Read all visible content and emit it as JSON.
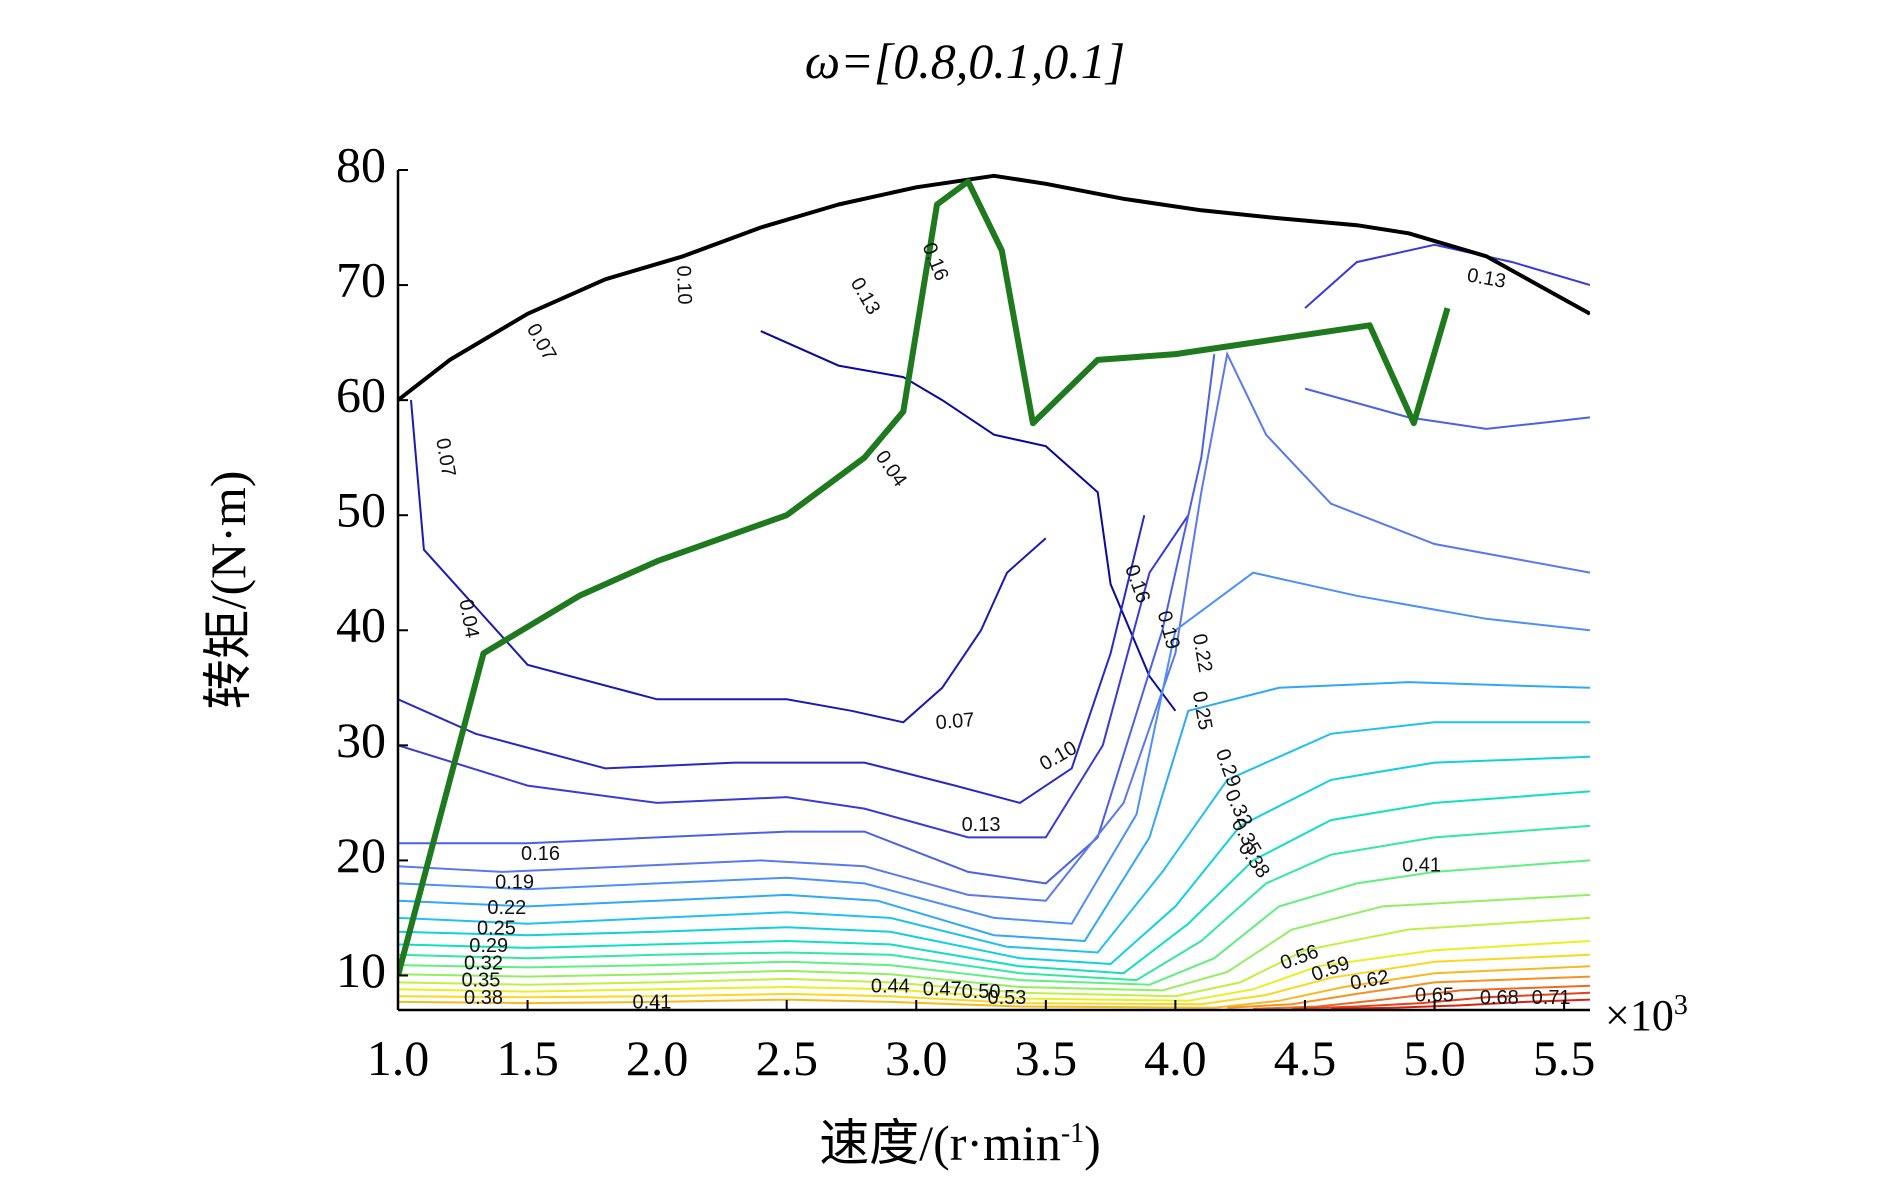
{
  "chart_data": {
    "type": "contour",
    "title": "ω=[0.8,0.1,0.1]",
    "xlabel": "速度/(r·min",
    "xlabel_sup": "-1",
    "xlabel_end": ")",
    "ylabel": "转矩/(N·m)",
    "x_multiplier": "×10",
    "x_multiplier_sup": "3",
    "xlim": [
      1.0,
      5.6
    ],
    "ylim": [
      7,
      80
    ],
    "x_ticks": [
      1.0,
      1.5,
      2.0,
      2.5,
      3.0,
      3.5,
      4.0,
      4.5,
      5.0,
      5.5
    ],
    "x_tick_labels": [
      "1.0",
      "1.5",
      "2.0",
      "2.5",
      "3.0",
      "3.5",
      "4.0",
      "4.5",
      "5.0",
      "5.5"
    ],
    "y_ticks": [
      10,
      20,
      30,
      40,
      50,
      60,
      70,
      80
    ],
    "y_tick_labels": [
      "10",
      "20",
      "30",
      "40",
      "50",
      "60",
      "70",
      "80"
    ],
    "max_torque_curve": {
      "color": "#000000",
      "x": [
        1.0,
        1.2,
        1.5,
        1.8,
        2.1,
        2.4,
        2.7,
        3.0,
        3.3,
        3.5,
        3.8,
        4.1,
        4.4,
        4.7,
        4.9,
        5.2,
        5.4,
        5.6
      ],
      "y": [
        60,
        63.5,
        67.5,
        70.5,
        72.5,
        75,
        77,
        78.5,
        79.5,
        78.8,
        77.5,
        76.5,
        75.8,
        75.2,
        74.5,
        72.5,
        70,
        67.5
      ]
    },
    "operating_path": {
      "color": "#1f7a1f",
      "x": [
        1.0,
        1.33,
        1.7,
        2.0,
        2.5,
        2.8,
        2.95,
        3.08,
        3.2,
        3.33,
        3.45,
        3.7,
        4.0,
        4.3,
        4.75,
        4.92,
        5.05
      ],
      "y": [
        10,
        38,
        43,
        46,
        50,
        55,
        59,
        77,
        79,
        73,
        58,
        63.5,
        64,
        65,
        66.5,
        58,
        68
      ]
    },
    "contours": [
      {
        "level": 0.04,
        "color": "#0a0aa0",
        "x": [
          2.4,
          2.7,
          2.95,
          3.1,
          3.3,
          3.5,
          3.7,
          3.75,
          3.9,
          4.0
        ],
        "y": [
          66,
          63,
          62,
          60,
          57,
          56,
          52,
          44,
          36,
          33
        ]
      },
      {
        "level": 0.07,
        "color": "#1a1ab4",
        "x": [
          1.05,
          1.1,
          1.5,
          2.0,
          2.5,
          2.75,
          2.95,
          3.1,
          3.25,
          3.35,
          3.5
        ],
        "y": [
          60,
          47,
          37,
          34,
          34,
          33,
          32,
          35,
          40,
          45,
          48
        ]
      },
      {
        "level": 0.1,
        "color": "#2828c8",
        "x": [
          1.0,
          1.3,
          1.8,
          2.3,
          2.8,
          3.15,
          3.4,
          3.6,
          3.75,
          3.88
        ],
        "y": [
          34,
          31,
          28,
          28.5,
          28.5,
          26.5,
          25,
          28,
          38,
          50
        ]
      },
      {
        "level": 0.13,
        "color": "#3a3ad8",
        "x": [
          1.0,
          1.5,
          2.0,
          2.5,
          2.8,
          3.2,
          3.5,
          3.72,
          3.9,
          4.05
        ],
        "y": [
          30,
          26.5,
          25,
          25.5,
          24.5,
          22,
          22,
          30,
          45,
          50
        ]
      },
      {
        "level": 0.13,
        "color": "#3a3ad8",
        "x": [
          4.5,
          4.7,
          5.0,
          5.3,
          5.6
        ],
        "y": [
          68,
          72,
          73.5,
          72,
          70
        ]
      },
      {
        "level": 0.16,
        "color": "#4a60e8",
        "x": [
          1.0,
          1.5,
          2.0,
          2.5,
          2.8,
          3.2,
          3.5,
          3.7,
          3.95,
          4.1,
          4.15
        ],
        "y": [
          21.5,
          21.5,
          22,
          22.5,
          22.5,
          19,
          18,
          22,
          40,
          55,
          64
        ]
      },
      {
        "level": 0.16,
        "color": "#4a60e8",
        "x": [
          4.5,
          4.9,
          5.2,
          5.4,
          5.6
        ],
        "y": [
          61,
          58.5,
          57.5,
          58,
          58.5
        ]
      },
      {
        "level": 0.19,
        "color": "#5a78f0",
        "x": [
          1.0,
          1.4,
          1.9,
          2.4,
          2.8,
          3.2,
          3.5,
          3.8,
          4.0,
          4.1,
          4.2,
          4.35,
          4.6,
          5.0,
          5.6
        ],
        "y": [
          19.5,
          19,
          19.5,
          20,
          19.5,
          17,
          16.5,
          25,
          38,
          52,
          64,
          57,
          51,
          47.5,
          45
        ]
      },
      {
        "level": 0.22,
        "color": "#4a90f8",
        "x": [
          1.0,
          1.5,
          2.0,
          2.5,
          2.8,
          3.3,
          3.6,
          3.85,
          4.0,
          4.3,
          4.7,
          5.2,
          5.6
        ],
        "y": [
          18,
          17.5,
          18,
          18.5,
          18,
          15,
          14.5,
          24,
          40,
          45,
          43,
          41,
          40
        ]
      },
      {
        "level": 0.25,
        "color": "#30a8f8",
        "x": [
          1.0,
          1.5,
          2.0,
          2.5,
          2.85,
          3.3,
          3.65,
          3.9,
          4.05,
          4.4,
          4.9,
          5.3,
          5.6
        ],
        "y": [
          16.5,
          16,
          16.5,
          17,
          16.5,
          13.5,
          13,
          22,
          33,
          35,
          35.5,
          35.2,
          35
        ]
      },
      {
        "level": 0.29,
        "color": "#20c0f0",
        "x": [
          1.0,
          1.5,
          2.0,
          2.5,
          2.9,
          3.35,
          3.7,
          3.95,
          4.2,
          4.6,
          5.0,
          5.6
        ],
        "y": [
          15,
          14.5,
          15,
          15.5,
          15,
          12.5,
          12,
          19,
          27,
          31,
          32,
          32
        ]
      },
      {
        "level": 0.32,
        "color": "#10d0e0",
        "x": [
          1.0,
          1.5,
          2.0,
          2.5,
          2.9,
          3.4,
          3.75,
          4.0,
          4.25,
          4.6,
          5.0,
          5.6
        ],
        "y": [
          13.8,
          13.5,
          13.8,
          14.2,
          13.8,
          11.5,
          11,
          16,
          23,
          27,
          28.5,
          29
        ]
      },
      {
        "level": 0.35,
        "color": "#10e0c0",
        "x": [
          1.0,
          1.5,
          2.0,
          2.5,
          2.9,
          3.4,
          3.8,
          4.05,
          4.3,
          4.6,
          5.0,
          5.6
        ],
        "y": [
          12.7,
          12.4,
          12.7,
          13,
          12.7,
          10.8,
          10.2,
          14.5,
          20,
          23.5,
          25,
          26
        ]
      },
      {
        "level": 0.38,
        "color": "#30e8a0",
        "x": [
          1.0,
          1.5,
          2.0,
          2.5,
          2.9,
          3.4,
          3.85,
          4.1,
          4.35,
          4.6,
          5.0,
          5.6
        ],
        "y": [
          11.8,
          11.5,
          11.8,
          12,
          11.8,
          10.2,
          9.6,
          13,
          18,
          20.5,
          22,
          23
        ]
      },
      {
        "level": 0.41,
        "color": "#60f080",
        "x": [
          1.0,
          1.5,
          2.0,
          2.5,
          2.9,
          3.4,
          3.9,
          4.15,
          4.4,
          4.7,
          5.0,
          5.6
        ],
        "y": [
          10.9,
          10.7,
          10.9,
          11.2,
          10.9,
          9.6,
          9.2,
          11.5,
          16,
          18,
          19,
          20
        ]
      },
      {
        "level": 0.44,
        "color": "#90f060",
        "x": [
          1.0,
          1.5,
          2.0,
          2.5,
          2.9,
          3.4,
          3.95,
          4.2,
          4.45,
          4.8,
          5.6
        ],
        "y": [
          10.1,
          9.9,
          10.1,
          10.4,
          10.1,
          9.0,
          8.7,
          10.3,
          14,
          16,
          17
        ]
      },
      {
        "level": 0.47,
        "color": "#c0f040",
        "x": [
          1.0,
          1.5,
          2.0,
          2.5,
          2.9,
          3.4,
          4.0,
          4.25,
          4.5,
          4.9,
          5.6
        ],
        "y": [
          9.4,
          9.2,
          9.4,
          9.7,
          9.4,
          8.5,
          8.2,
          9.4,
          12.2,
          14,
          15
        ]
      },
      {
        "level": 0.5,
        "color": "#e8f020",
        "x": [
          1.0,
          1.5,
          2.0,
          2.5,
          2.9,
          3.4,
          4.05,
          4.3,
          4.55,
          5.0,
          5.6
        ],
        "y": [
          8.8,
          8.6,
          8.8,
          9.0,
          8.8,
          8.0,
          7.8,
          8.8,
          10.8,
          12.2,
          13
        ]
      },
      {
        "level": 0.53,
        "color": "#f8d820",
        "x": [
          1.0,
          1.5,
          2.0,
          2.5,
          2.9,
          3.4,
          4.1,
          4.35,
          4.6,
          5.0,
          5.6
        ],
        "y": [
          8.2,
          8.1,
          8.2,
          8.4,
          8.2,
          7.6,
          7.5,
          8.3,
          9.8,
          11.2,
          11.8
        ]
      },
      {
        "level": 0.56,
        "color": "#f8b820",
        "x": [
          1.0,
          1.5,
          2.0,
          2.5,
          2.9,
          3.4,
          4.15,
          4.4,
          4.65,
          5.0,
          5.6
        ],
        "y": [
          7.7,
          7.6,
          7.7,
          7.9,
          7.7,
          7.3,
          7.2,
          7.8,
          9.0,
          10.2,
          10.8
        ]
      },
      {
        "level": 0.59,
        "color": "#f89020",
        "x": [
          4.2,
          4.45,
          4.7,
          5.0,
          5.6
        ],
        "y": [
          7.2,
          7.5,
          8.4,
          9.4,
          9.9
        ]
      },
      {
        "level": 0.62,
        "color": "#f06820",
        "x": [
          4.3,
          4.55,
          4.8,
          5.1,
          5.6
        ],
        "y": [
          7.1,
          7.3,
          7.9,
          8.7,
          9.1
        ]
      },
      {
        "level": 0.65,
        "color": "#e84018",
        "x": [
          4.45,
          4.7,
          4.95,
          5.2,
          5.6
        ],
        "y": [
          7.1,
          7.3,
          7.6,
          8.1,
          8.5
        ]
      },
      {
        "level": 0.68,
        "color": "#d82010",
        "x": [
          4.6,
          4.85,
          5.1,
          5.35,
          5.6
        ],
        "y": [
          7.1,
          7.2,
          7.4,
          7.7,
          7.9
        ]
      }
    ],
    "contour_labels": [
      {
        "text": "0.07",
        "x": 1.55,
        "y": 65,
        "rot": 60
      },
      {
        "text": "0.10",
        "x": 2.1,
        "y": 70,
        "rot": 88
      },
      {
        "text": "0.13",
        "x": 2.8,
        "y": 69,
        "rot": 60
      },
      {
        "text": "0.16",
        "x": 3.07,
        "y": 72,
        "rot": 68
      },
      {
        "text": "0.13",
        "x": 5.2,
        "y": 70.5,
        "rot": 10
      },
      {
        "text": "0.07",
        "x": 1.18,
        "y": 55,
        "rot": 80
      },
      {
        "text": "0.04",
        "x": 2.9,
        "y": 54,
        "rot": 55
      },
      {
        "text": "0.04",
        "x": 1.27,
        "y": 41,
        "rot": 80
      },
      {
        "text": "0.07",
        "x": 3.15,
        "y": 32,
        "rot": -5
      },
      {
        "text": "0.10",
        "x": 3.55,
        "y": 29,
        "rot": -30
      },
      {
        "text": "0.13",
        "x": 3.25,
        "y": 23,
        "rot": 0
      },
      {
        "text": "0.16",
        "x": 3.85,
        "y": 44,
        "rot": 70
      },
      {
        "text": "0.19",
        "x": 3.97,
        "y": 40,
        "rot": 75
      },
      {
        "text": "0.22",
        "x": 4.1,
        "y": 38,
        "rot": 80
      },
      {
        "text": "0.25",
        "x": 4.1,
        "y": 33,
        "rot": 80
      },
      {
        "text": "0.29",
        "x": 4.2,
        "y": 28,
        "rot": 70
      },
      {
        "text": "0.32",
        "x": 4.24,
        "y": 24.5,
        "rot": 65
      },
      {
        "text": "0.35",
        "x": 4.27,
        "y": 22,
        "rot": 60
      },
      {
        "text": "0.38",
        "x": 4.3,
        "y": 20,
        "rot": 55
      },
      {
        "text": "0.41",
        "x": 4.95,
        "y": 19.5,
        "rot": 0
      },
      {
        "text": "0.16",
        "x": 1.55,
        "y": 20.5,
        "rot": 0
      },
      {
        "text": "0.19",
        "x": 1.45,
        "y": 18,
        "rot": 0
      },
      {
        "text": "0.22",
        "x": 1.42,
        "y": 15.8,
        "rot": 0
      },
      {
        "text": "0.25",
        "x": 1.38,
        "y": 14,
        "rot": 0
      },
      {
        "text": "0.29",
        "x": 1.35,
        "y": 12.5,
        "rot": 0
      },
      {
        "text": "0.32",
        "x": 1.33,
        "y": 11,
        "rot": 0
      },
      {
        "text": "0.35",
        "x": 1.32,
        "y": 9.5,
        "rot": 0
      },
      {
        "text": "0.38",
        "x": 1.33,
        "y": 8,
        "rot": 0
      },
      {
        "text": "0.41",
        "x": 1.98,
        "y": 7.6,
        "rot": 0
      },
      {
        "text": "0.44",
        "x": 2.9,
        "y": 9.0,
        "rot": 0
      },
      {
        "text": "0.47",
        "x": 3.1,
        "y": 8.7,
        "rot": 0
      },
      {
        "text": "0.50",
        "x": 3.25,
        "y": 8.5,
        "rot": 0
      },
      {
        "text": "0.53",
        "x": 3.35,
        "y": 8.0,
        "rot": 0
      },
      {
        "text": "0.56",
        "x": 4.48,
        "y": 11.5,
        "rot": -20
      },
      {
        "text": "0.59",
        "x": 4.6,
        "y": 10.5,
        "rot": -20
      },
      {
        "text": "0.62",
        "x": 4.75,
        "y": 9.5,
        "rot": -10
      },
      {
        "text": "0.65",
        "x": 5.0,
        "y": 8.2,
        "rot": 0
      },
      {
        "text": "0.68",
        "x": 5.25,
        "y": 8.0,
        "rot": 0
      },
      {
        "text": "0.71",
        "x": 5.45,
        "y": 8.0,
        "rot": 0
      }
    ]
  }
}
